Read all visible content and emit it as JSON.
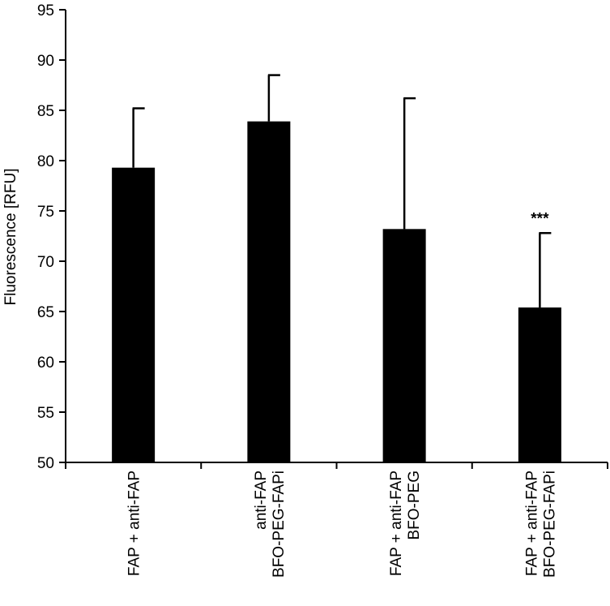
{
  "chart_data": {
    "type": "bar",
    "title": "",
    "xlabel": "",
    "ylabel": "Fluorescence [RFU]",
    "ylim": [
      50,
      95
    ],
    "yticks": [
      50,
      55,
      60,
      65,
      70,
      75,
      80,
      85,
      90,
      95
    ],
    "grid": false,
    "bar_color": "#000000",
    "categories": [
      [
        "FAP + anti-FAP"
      ],
      [
        "anti-FAP",
        "BFO-PEG-FAPi"
      ],
      [
        "FAP + anti-FAP",
        "BFO-PEG"
      ],
      [
        "FAP + anti-FAP",
        "BFO-PEG-FAPi"
      ]
    ],
    "values": [
      79.3,
      83.9,
      73.2,
      65.4
    ],
    "error_upper": [
      5.9,
      4.6,
      13.0,
      7.4
    ],
    "annotations": [
      "",
      "",
      "",
      "***"
    ]
  }
}
